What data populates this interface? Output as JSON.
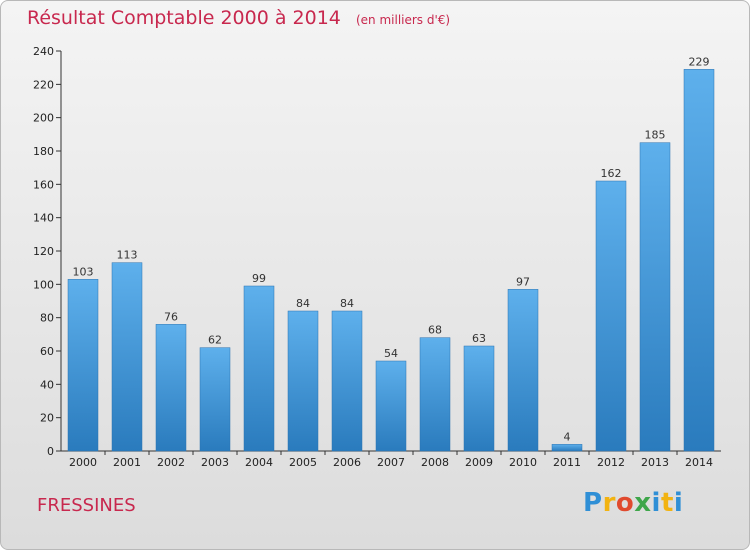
{
  "header": {
    "title": "Résultat Comptable 2000 à 2014",
    "unit": "(en milliers d'€)"
  },
  "commune": "FRESSINES",
  "logo": {
    "text": "Proxiti",
    "letters": [
      "P",
      "r",
      "o",
      "x",
      "i",
      "t",
      "i"
    ],
    "colors": [
      "#2f8fd6",
      "#f2b311",
      "#e04a2e",
      "#3ea64a",
      "#2f8fd6",
      "#f2b311",
      "#2f8fd6"
    ]
  },
  "colors": {
    "bar_top": "#5eb0ec",
    "bar_bottom": "#2a7bbd",
    "title": "#c8284e"
  },
  "chart_data": {
    "type": "bar",
    "categories": [
      "2000",
      "2001",
      "2002",
      "2003",
      "2004",
      "2005",
      "2006",
      "2007",
      "2008",
      "2009",
      "2010",
      "2011",
      "2012",
      "2013",
      "2014"
    ],
    "values": [
      103,
      113,
      76,
      62,
      99,
      84,
      84,
      54,
      68,
      63,
      97,
      4,
      162,
      185,
      229
    ],
    "yticks": [
      0,
      20,
      40,
      60,
      80,
      100,
      120,
      140,
      160,
      180,
      200,
      220,
      240
    ],
    "ylim": [
      0,
      240
    ],
    "grid": false,
    "data_labels": true
  }
}
